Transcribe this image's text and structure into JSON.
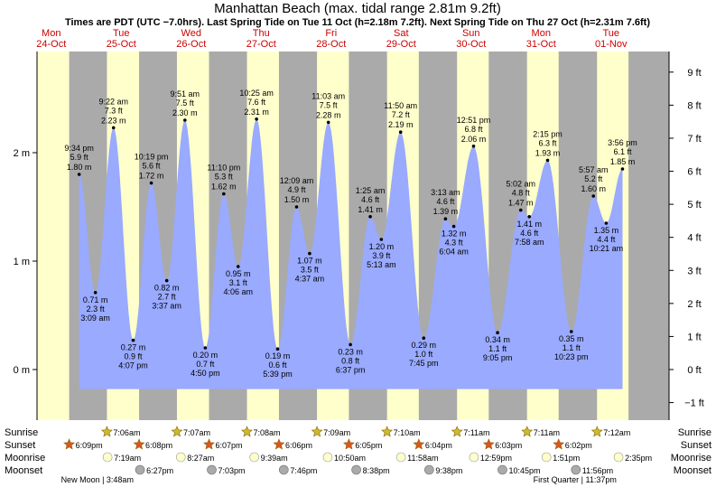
{
  "title": "Manhattan Beach (max. tidal range 2.81m 9.2ft)",
  "subtitle": "Times are PDT (UTC −7.0hrs). Last Spring Tide on Tue 11 Oct (h=2.18m 7.2ft). Next Spring Tide on Thu 27 Oct (h=2.31m 7.6ft)",
  "colors": {
    "water": "#99aaff",
    "day": "#ffffcc",
    "night": "#aaaaaa",
    "day_text": "#cc0000",
    "sun": "#ccbb33",
    "sunset": "#dd5522",
    "moon_rise": "#ffffcc",
    "moon_set": "#aaaaaa"
  },
  "days": [
    {
      "name": "Mon",
      "date": "24-Oct"
    },
    {
      "name": "Tue",
      "date": "25-Oct"
    },
    {
      "name": "Wed",
      "date": "26-Oct"
    },
    {
      "name": "Thu",
      "date": "27-Oct"
    },
    {
      "name": "Fri",
      "date": "28-Oct"
    },
    {
      "name": "Sat",
      "date": "29-Oct"
    },
    {
      "name": "Sun",
      "date": "30-Oct"
    },
    {
      "name": "Mon",
      "date": "31-Oct"
    },
    {
      "name": "Tue",
      "date": "01-Nov"
    }
  ],
  "chart_data": {
    "type": "area",
    "title": "Manhattan Beach (max. tidal range 2.81m 9.2ft)",
    "y_left_unit": "m",
    "y_right_unit": "ft",
    "y_left_ticks": [
      "0 m",
      "1 m",
      "2 m"
    ],
    "y_right_ticks": [
      "−1 ft",
      "0 ft",
      "1 ft",
      "2 ft",
      "3 ft",
      "4 ft",
      "5 ft",
      "6 ft",
      "7 ft",
      "8 ft",
      "9 ft"
    ],
    "ylim_m": [
      -0.45,
      2.8
    ],
    "tides": [
      {
        "day": 0,
        "time": "9:34 pm",
        "m": 1.8,
        "ft": "5.9 ft",
        "type": "high"
      },
      {
        "day": 1,
        "time": "3:09 am",
        "m": 0.71,
        "ft": "2.3 ft",
        "type": "low"
      },
      {
        "day": 1,
        "time": "9:22 am",
        "m": 2.23,
        "ft": "7.3 ft",
        "type": "high"
      },
      {
        "day": 1,
        "time": "4:07 pm",
        "m": 0.27,
        "ft": "0.9 ft",
        "type": "low"
      },
      {
        "day": 1,
        "time": "10:19 pm",
        "m": 1.72,
        "ft": "5.6 ft",
        "type": "high"
      },
      {
        "day": 2,
        "time": "3:37 am",
        "m": 0.82,
        "ft": "2.7 ft",
        "type": "low"
      },
      {
        "day": 2,
        "time": "9:51 am",
        "m": 2.3,
        "ft": "7.5 ft",
        "type": "high"
      },
      {
        "day": 2,
        "time": "4:50 pm",
        "m": 0.2,
        "ft": "0.7 ft",
        "type": "low"
      },
      {
        "day": 2,
        "time": "11:10 pm",
        "m": 1.62,
        "ft": "5.3 ft",
        "type": "high"
      },
      {
        "day": 3,
        "time": "4:06 am",
        "m": 0.95,
        "ft": "3.1 ft",
        "type": "low"
      },
      {
        "day": 3,
        "time": "10:25 am",
        "m": 2.31,
        "ft": "7.6 ft",
        "type": "high"
      },
      {
        "day": 3,
        "time": "5:39 pm",
        "m": 0.19,
        "ft": "0.6 ft",
        "type": "low"
      },
      {
        "day": 4,
        "time": "12:09 am",
        "m": 1.5,
        "ft": "4.9 ft",
        "type": "high"
      },
      {
        "day": 4,
        "time": "4:37 am",
        "m": 1.07,
        "ft": "3.5 ft",
        "type": "low"
      },
      {
        "day": 4,
        "time": "11:03 am",
        "m": 2.28,
        "ft": "7.5 ft",
        "type": "high"
      },
      {
        "day": 4,
        "time": "6:37 pm",
        "m": 0.23,
        "ft": "0.8 ft",
        "type": "low"
      },
      {
        "day": 5,
        "time": "1:25 am",
        "m": 1.41,
        "ft": "4.6 ft",
        "type": "high"
      },
      {
        "day": 5,
        "time": "5:13 am",
        "m": 1.2,
        "ft": "3.9 ft",
        "type": "low"
      },
      {
        "day": 5,
        "time": "11:50 am",
        "m": 2.19,
        "ft": "7.2 ft",
        "type": "high"
      },
      {
        "day": 5,
        "time": "7:45 pm",
        "m": 0.29,
        "ft": "1.0 ft",
        "type": "low"
      },
      {
        "day": 6,
        "time": "3:13 am",
        "m": 1.39,
        "ft": "4.6 ft",
        "type": "high"
      },
      {
        "day": 6,
        "time": "6:04 am",
        "m": 1.32,
        "ft": "4.3 ft",
        "type": "low"
      },
      {
        "day": 6,
        "time": "12:51 pm",
        "m": 2.06,
        "ft": "6.8 ft",
        "type": "high"
      },
      {
        "day": 6,
        "time": "9:05 pm",
        "m": 0.34,
        "ft": "1.1 ft",
        "type": "low"
      },
      {
        "day": 7,
        "time": "5:02 am",
        "m": 1.47,
        "ft": "4.8 ft",
        "type": "high"
      },
      {
        "day": 7,
        "time": "7:58 am",
        "m": 1.41,
        "ft": "4.6 ft",
        "type": "low"
      },
      {
        "day": 7,
        "time": "2:15 pm",
        "m": 1.93,
        "ft": "6.3 ft",
        "type": "high"
      },
      {
        "day": 7,
        "time": "10:23 pm",
        "m": 0.35,
        "ft": "1.1 ft",
        "type": "low"
      },
      {
        "day": 8,
        "time": "5:57 am",
        "m": 1.6,
        "ft": "5.2 ft",
        "type": "high"
      },
      {
        "day": 8,
        "time": "10:21 am",
        "m": 1.35,
        "ft": "4.4 ft",
        "type": "low"
      },
      {
        "day": 8,
        "time": "3:56 pm",
        "m": 1.85,
        "ft": "6.1 ft",
        "type": "high"
      }
    ]
  },
  "astro": {
    "labels": {
      "sunrise": "Sunrise",
      "sunset": "Sunset",
      "moonrise": "Moonrise",
      "moonset": "Moonset"
    },
    "sunrise": [
      {
        "day": 1,
        "time": "7:06am"
      },
      {
        "day": 2,
        "time": "7:07am"
      },
      {
        "day": 3,
        "time": "7:08am"
      },
      {
        "day": 4,
        "time": "7:09am"
      },
      {
        "day": 5,
        "time": "7:10am"
      },
      {
        "day": 6,
        "time": "7:11am"
      },
      {
        "day": 7,
        "time": "7:11am"
      },
      {
        "day": 8,
        "time": "7:12am"
      }
    ],
    "sunset": [
      {
        "day": 0,
        "time": "6:09pm"
      },
      {
        "day": 1,
        "time": "6:08pm"
      },
      {
        "day": 2,
        "time": "6:07pm"
      },
      {
        "day": 3,
        "time": "6:06pm"
      },
      {
        "day": 4,
        "time": "6:05pm"
      },
      {
        "day": 5,
        "time": "6:04pm"
      },
      {
        "day": 6,
        "time": "6:03pm"
      },
      {
        "day": 7,
        "time": "6:02pm"
      }
    ],
    "moonrise": [
      {
        "day": 1,
        "time": "7:19am"
      },
      {
        "day": 2,
        "time": "8:27am"
      },
      {
        "day": 3,
        "time": "9:39am"
      },
      {
        "day": 4,
        "time": "10:50am"
      },
      {
        "day": 5,
        "time": "11:58am"
      },
      {
        "day": 6,
        "time": "12:59pm"
      },
      {
        "day": 7,
        "time": "1:51pm"
      },
      {
        "day": 8,
        "time": "2:35pm"
      }
    ],
    "moonset": [
      {
        "day": 1,
        "time": "6:27pm"
      },
      {
        "day": 2,
        "time": "7:03pm"
      },
      {
        "day": 3,
        "time": "7:46pm"
      },
      {
        "day": 4,
        "time": "8:38pm"
      },
      {
        "day": 5,
        "time": "9:38pm"
      },
      {
        "day": 6,
        "time": "10:45pm"
      },
      {
        "day": 7,
        "time": "11:56pm"
      }
    ],
    "phases": [
      {
        "day": 1,
        "time": "3:48am",
        "text": "New Moon | 3:48am"
      },
      {
        "day": 7,
        "time": "11:37pm",
        "text": "First Quarter | 11:37pm"
      }
    ]
  }
}
